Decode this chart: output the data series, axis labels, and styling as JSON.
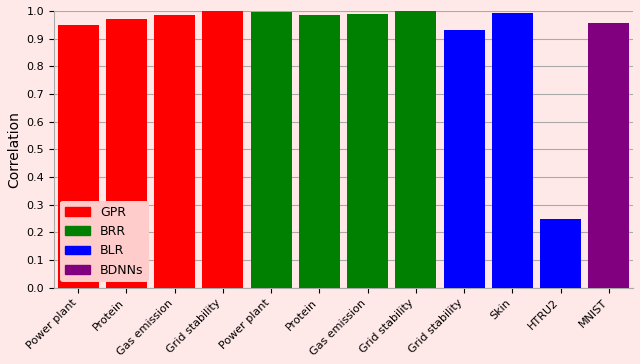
{
  "bars": [
    {
      "label": "Power plant",
      "value": 0.95,
      "color": "#ff0000",
      "group": "GPR"
    },
    {
      "label": "Protein",
      "value": 0.97,
      "color": "#ff0000",
      "group": "GPR"
    },
    {
      "label": "Gas emission",
      "value": 0.984,
      "color": "#ff0000",
      "group": "GPR"
    },
    {
      "label": "Grid stability",
      "value": 1.0,
      "color": "#ff0000",
      "group": "GPR"
    },
    {
      "label": "Power plant",
      "value": 0.997,
      "color": "#008000",
      "group": "BRR"
    },
    {
      "label": "Protein",
      "value": 0.984,
      "color": "#008000",
      "group": "BRR"
    },
    {
      "label": "Gas emission",
      "value": 0.99,
      "color": "#008000",
      "group": "BRR"
    },
    {
      "label": "Grid stability",
      "value": 1.0,
      "color": "#008000",
      "group": "BRR"
    },
    {
      "label": "Grid stability",
      "value": 0.932,
      "color": "#0000ff",
      "group": "BLR"
    },
    {
      "label": "Skin",
      "value": 0.993,
      "color": "#0000ff",
      "group": "BLR"
    },
    {
      "label": "HTRU2",
      "value": 0.247,
      "color": "#0000ff",
      "group": "BLR"
    },
    {
      "label": "MNIST",
      "value": 0.958,
      "color": "#800080",
      "group": "BDNNs"
    }
  ],
  "ylabel": "Correlation",
  "ylim": [
    0.0,
    1.0
  ],
  "yticks": [
    0.0,
    0.1,
    0.2,
    0.3,
    0.4,
    0.5,
    0.6,
    0.7,
    0.8,
    0.9,
    1.0
  ],
  "legend": [
    {
      "label": "GPR",
      "color": "#ff0000"
    },
    {
      "label": "BRR",
      "color": "#008000"
    },
    {
      "label": "BLR",
      "color": "#0000ff"
    },
    {
      "label": "BDNNs",
      "color": "#800080"
    }
  ],
  "background_color": "#ffe8e8",
  "axes_bg_color": "#ffe8e8",
  "grid_color": "#aaaaaa",
  "bar_width": 0.85,
  "tick_fontsize": 8,
  "ylabel_fontsize": 10,
  "legend_fontsize": 9
}
